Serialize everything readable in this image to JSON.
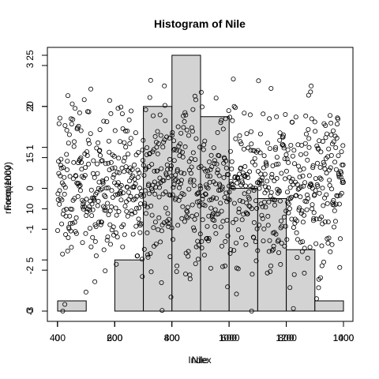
{
  "chart_data": [
    {
      "type": "bar",
      "title": "Histogram of Nile",
      "xlabel": "Nile",
      "ylabel": "Frequency",
      "xlim": [
        400,
        1400
      ],
      "ylim": [
        0,
        25
      ],
      "bins": [
        [
          400,
          500
        ],
        [
          500,
          600
        ],
        [
          600,
          700
        ],
        [
          700,
          800
        ],
        [
          800,
          900
        ],
        [
          900,
          1000
        ],
        [
          1000,
          1100
        ],
        [
          1100,
          1200
        ],
        [
          1200,
          1300
        ],
        [
          1300,
          1400
        ]
      ],
      "values": [
        1,
        0,
        5,
        20,
        25,
        19,
        12,
        11,
        6,
        1
      ],
      "x_ticks": [
        "400",
        "600",
        "800",
        "1000",
        "1200",
        "1400"
      ],
      "y_ticks": [
        "0",
        "5",
        "10",
        "15",
        "20",
        "25"
      ],
      "bar_fill": "#d3d3d3",
      "bar_stroke": "#000000"
    },
    {
      "type": "scatter",
      "xlabel": "Index",
      "ylabel": "rnorm(1000)",
      "n_points": 1000,
      "xlim": [
        1,
        1000
      ],
      "ylim": [
        -3,
        3.25
      ],
      "x_ticks": [
        "0",
        "200",
        "400",
        "600",
        "800",
        "1000"
      ],
      "y_ticks": [
        "-3",
        "-2",
        "-1",
        "0",
        "1",
        "2",
        "3"
      ],
      "marker": "open-circle"
    }
  ]
}
